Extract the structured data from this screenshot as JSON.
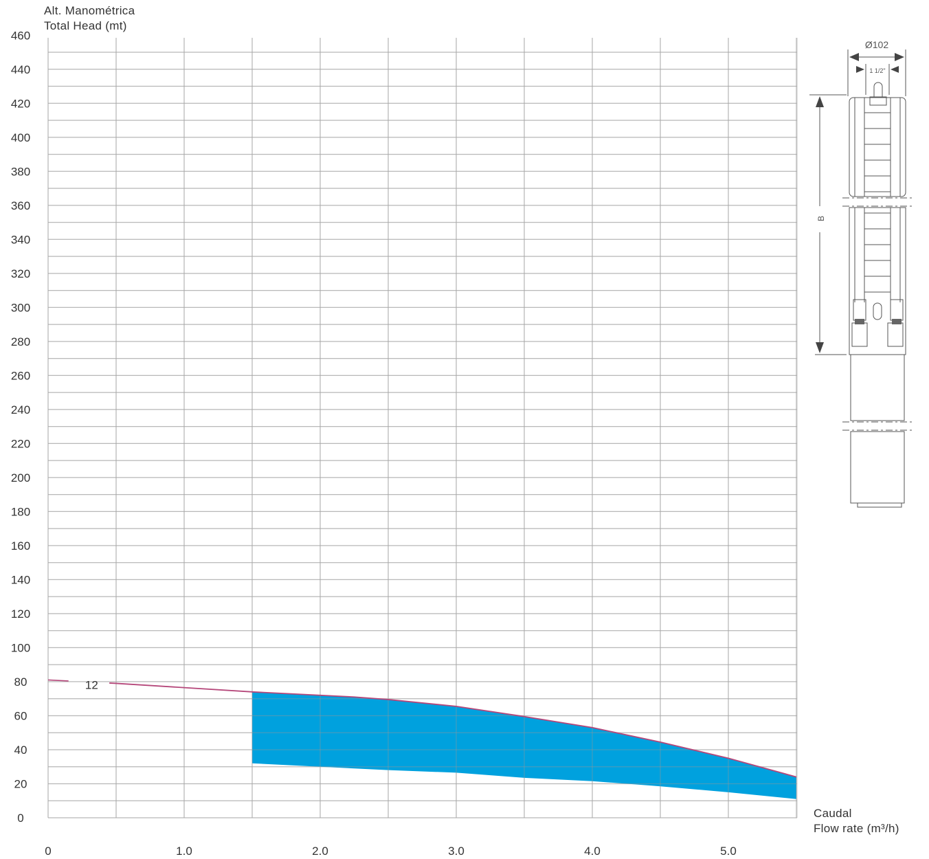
{
  "y_axis_title": [
    "Alt. Manométrica",
    "Total Head (mt)"
  ],
  "x_axis_title": [
    "Caudal",
    "Flow rate (m³/h)"
  ],
  "chart_data": {
    "type": "area",
    "title": "",
    "xlabel": "Caudal / Flow rate (m³/h)",
    "ylabel": "Alt. Manométrica / Total Head (mt)",
    "xlim": [
      0,
      5.5
    ],
    "ylim": [
      0,
      460
    ],
    "x_tick_labels": [
      "0",
      "1.0",
      "2.0",
      "3.0",
      "4.0",
      "5.0"
    ],
    "y_tick_labels": [
      "0",
      "20",
      "40",
      "60",
      "80",
      "100",
      "120",
      "140",
      "160",
      "180",
      "200",
      "220",
      "240",
      "260",
      "280",
      "300",
      "320",
      "340",
      "360",
      "380",
      "400",
      "420",
      "440",
      "460"
    ],
    "grid": true,
    "curve_label": "12",
    "head_curve": {
      "name": "12",
      "color": "#b5477a",
      "x": [
        0,
        0.5,
        1.0,
        1.5,
        2.0,
        2.25,
        2.5,
        3.0,
        3.5,
        4.0,
        4.5,
        5.0,
        5.5
      ],
      "y": [
        81,
        79,
        76.5,
        74,
        72,
        71,
        69.5,
        65.5,
        59.5,
        53,
        44.5,
        35,
        24
      ]
    },
    "operating_range": {
      "color": "#00a1de",
      "x": [
        1.5,
        2.0,
        2.5,
        3.0,
        3.5,
        4.0,
        4.5,
        5.0,
        5.5
      ],
      "upper": [
        74,
        72,
        69.5,
        65.5,
        59.5,
        53,
        44.5,
        35,
        24
      ],
      "lower": [
        32,
        30,
        28,
        26.5,
        23.5,
        21.5,
        18.5,
        15,
        11
      ]
    }
  },
  "drawing": {
    "diameter_label": "Ø102",
    "outlet_label": "1 1/2\"",
    "length_label": "B"
  }
}
